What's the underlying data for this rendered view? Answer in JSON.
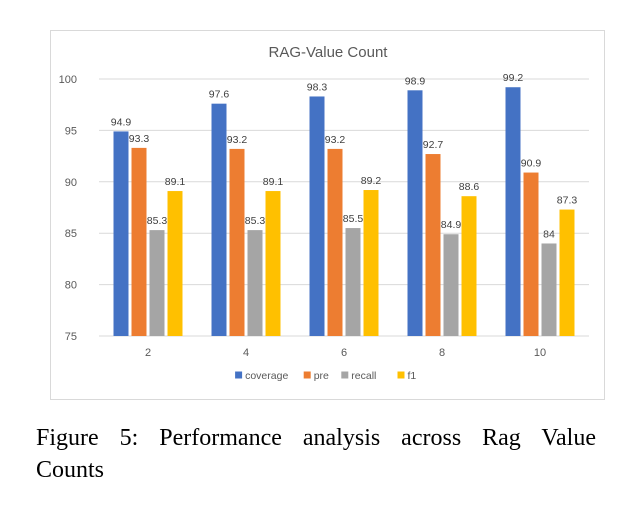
{
  "chart_data": {
    "type": "bar",
    "title": "RAG-Value Count",
    "categories": [
      "2",
      "4",
      "6",
      "8",
      "10"
    ],
    "series": [
      {
        "name": "coverage",
        "color": "#4472C4",
        "values": [
          94.9,
          97.6,
          98.3,
          98.9,
          99.2
        ]
      },
      {
        "name": "pre",
        "color": "#ED7D31",
        "values": [
          93.3,
          93.2,
          93.2,
          92.7,
          90.9
        ]
      },
      {
        "name": "recall",
        "color": "#A5A5A5",
        "values": [
          85.3,
          85.3,
          85.5,
          84.9,
          84
        ]
      },
      {
        "name": "f1",
        "color": "#FFC000",
        "values": [
          89.1,
          89.1,
          89.2,
          88.6,
          87.3
        ]
      }
    ],
    "ylim": [
      75,
      100
    ],
    "yticks": [
      75,
      80,
      85,
      90,
      95,
      100
    ],
    "xlabel": "",
    "ylabel": "",
    "grid": true,
    "legend_position": "bottom"
  },
  "caption": {
    "text": "Figure 5:  Performance analysis across Rag Value Counts"
  },
  "colors": {
    "gridline": "#d9d9d9",
    "axis_text": "#595959",
    "label_text": "#404040"
  }
}
